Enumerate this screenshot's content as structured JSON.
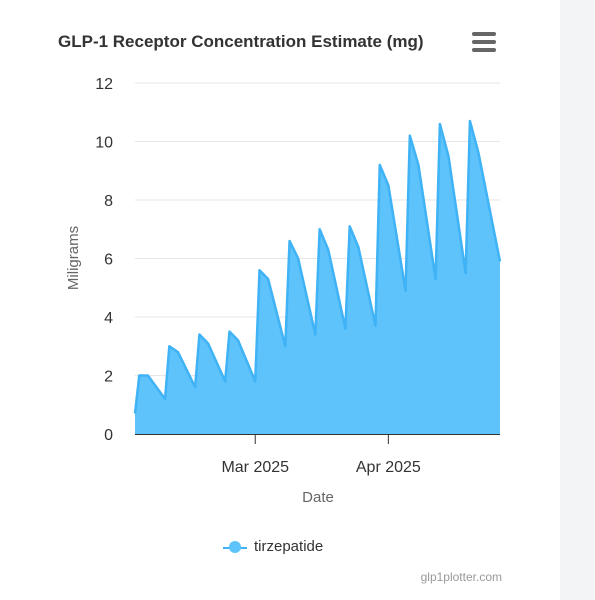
{
  "title": "GLP-1 Receptor Concentration Estimate (mg)",
  "menu_icon": "hamburger-menu-icon",
  "credits": "glp1plotter.com",
  "colors": {
    "series": "#3fb3f5",
    "fill": "#5ec2fb",
    "axis": "#333333",
    "grid": "#e6e6e6",
    "label": "#666666"
  },
  "chart_data": {
    "type": "area",
    "title": "GLP-1 Receptor Concentration Estimate (mg)",
    "xlabel": "Date",
    "ylabel": "Miligrams",
    "ylim": [
      0,
      12
    ],
    "yticks": [
      0,
      2,
      4,
      6,
      8,
      10,
      12
    ],
    "xlim": [
      "2025-02-01",
      "2025-04-27"
    ],
    "xticks": [
      {
        "date": "2025-03-01",
        "label": "Mar 2025"
      },
      {
        "date": "2025-04-01",
        "label": "Apr 2025"
      }
    ],
    "grid": true,
    "legend": "bottom-center",
    "series": [
      {
        "name": "tirzepatide",
        "points": [
          [
            "2025-02-01",
            0.7
          ],
          [
            "2025-02-02",
            2.0
          ],
          [
            "2025-02-04",
            2.0
          ],
          [
            "2025-02-08",
            1.2
          ],
          [
            "2025-02-09",
            3.0
          ],
          [
            "2025-02-11",
            2.8
          ],
          [
            "2025-02-15",
            1.6
          ],
          [
            "2025-02-16",
            3.4
          ],
          [
            "2025-02-18",
            3.1
          ],
          [
            "2025-02-22",
            1.8
          ],
          [
            "2025-02-23",
            3.5
          ],
          [
            "2025-02-25",
            3.2
          ],
          [
            "2025-03-01",
            1.8
          ],
          [
            "2025-03-02",
            5.6
          ],
          [
            "2025-03-04",
            5.3
          ],
          [
            "2025-03-08",
            3.0
          ],
          [
            "2025-03-09",
            6.6
          ],
          [
            "2025-03-11",
            6.0
          ],
          [
            "2025-03-15",
            3.4
          ],
          [
            "2025-03-16",
            7.0
          ],
          [
            "2025-03-18",
            6.3
          ],
          [
            "2025-03-22",
            3.6
          ],
          [
            "2025-03-23",
            7.1
          ],
          [
            "2025-03-25",
            6.4
          ],
          [
            "2025-03-29",
            3.7
          ],
          [
            "2025-03-30",
            9.2
          ],
          [
            "2025-04-01",
            8.5
          ],
          [
            "2025-04-05",
            4.9
          ],
          [
            "2025-04-06",
            10.2
          ],
          [
            "2025-04-08",
            9.2
          ],
          [
            "2025-04-12",
            5.3
          ],
          [
            "2025-04-13",
            10.6
          ],
          [
            "2025-04-15",
            9.5
          ],
          [
            "2025-04-19",
            5.5
          ],
          [
            "2025-04-20",
            10.7
          ],
          [
            "2025-04-22",
            9.6
          ],
          [
            "2025-04-27",
            5.9
          ]
        ]
      }
    ]
  }
}
